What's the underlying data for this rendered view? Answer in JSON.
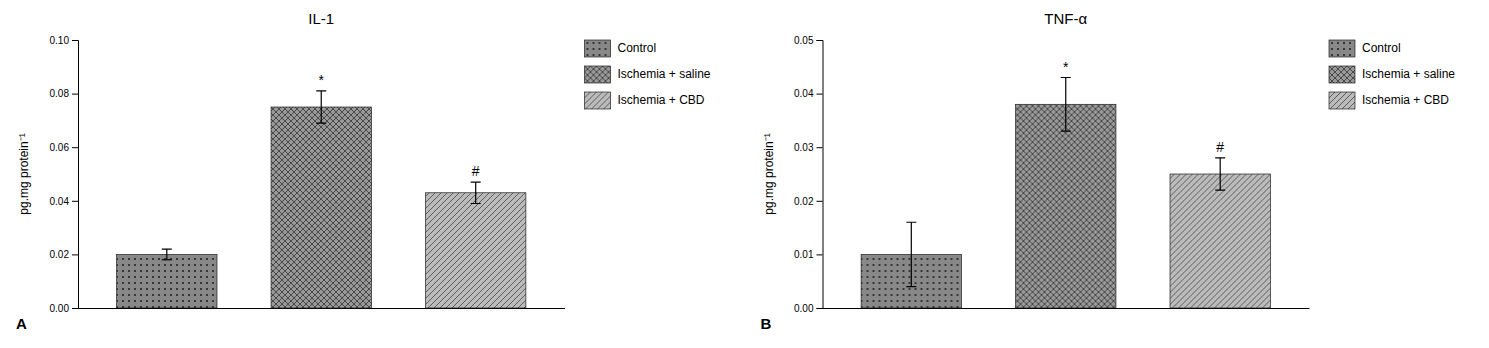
{
  "chart_data": [
    {
      "type": "bar",
      "title": "IL-1",
      "ylabel": "pg.mg protein⁻¹",
      "panel_label": "A",
      "categories": [
        null
      ],
      "series": [
        {
          "name": "Control",
          "color": "#888888",
          "values": [
            0.02
          ],
          "errors": [
            0.002
          ]
        },
        {
          "name": "Ischemia + saline",
          "color": "#999999",
          "values": [
            0.075
          ],
          "errors": [
            0.006
          ],
          "sig_labels": [
            "*"
          ]
        },
        {
          "name": "Ischemia + CBD",
          "color": "#bbbbbb",
          "values": [
            0.043
          ],
          "errors": [
            0.004
          ],
          "sig_labels": [
            "#"
          ]
        }
      ],
      "ylim": [
        0,
        0.1
      ],
      "yticks": [
        {
          "value": 0.0,
          "label": "0.00"
        },
        0.02,
        0.04,
        0.06,
        0.08,
        {
          "value": 0.1,
          "label": "0.10"
        }
      ],
      "grid": false,
      "legend": "right",
      "tick_labels": "y"
    },
    {
      "type": "bar",
      "title": "TNF-α",
      "ylabel": "pg.mg protein⁻¹",
      "panel_label": "B",
      "categories": [
        null
      ],
      "series": [
        {
          "name": "Control",
          "color": "#888888",
          "values": [
            0.01
          ],
          "errors": [
            0.006
          ]
        },
        {
          "name": "Ischemia + saline",
          "color": "#999999",
          "values": [
            0.038
          ],
          "errors": [
            0.005
          ],
          "sig_labels": [
            "*"
          ]
        },
        {
          "name": "Ischemia + CBD",
          "color": "#bbbbbb",
          "values": [
            0.025
          ],
          "errors": [
            0.003
          ],
          "sig_labels": [
            "#"
          ]
        }
      ],
      "ylim": [
        0,
        0.05
      ],
      "yticks": [
        {
          "value": 0.0,
          "label": "0.00"
        },
        0.01,
        0.02,
        0.03,
        0.04,
        0.05
      ],
      "grid": false,
      "legend": "right",
      "tick_labels": "y"
    }
  ]
}
